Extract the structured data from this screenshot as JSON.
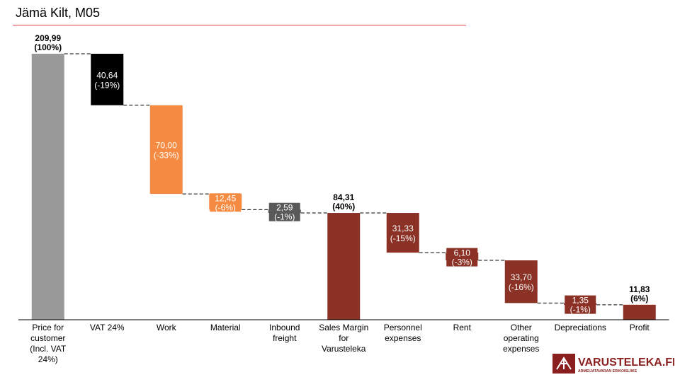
{
  "header": {
    "title": "Jämä Kilt, M05"
  },
  "brand": {
    "logo_text": "VARUSTELEKA.FI",
    "logo_tagline": "ARMEIJATAVARAN ERIKOISLIIKE",
    "color": "#8a1f1f"
  },
  "colors": {
    "total": "#999999",
    "vat": "#000000",
    "work": "#f58a42",
    "material": "#f58a42",
    "inbound": "#595959",
    "margin": "#8b3125",
    "accent_rule": "#e8414f"
  },
  "chart_data": {
    "type": "waterfall",
    "title": "Jämä Kilt, M05",
    "ylim": [
      0,
      209.99
    ],
    "grid": false,
    "legend": "none",
    "steps": [
      {
        "category": "Price for customer (Incl. VAT 24%)",
        "value": "209,99",
        "pct": "(100%)",
        "amount": 209.99,
        "kind": "total",
        "color_key": "total"
      },
      {
        "category": "VAT 24%",
        "value": "40,64",
        "pct": "(-19%)",
        "amount": -40.64,
        "kind": "delta",
        "color_key": "vat"
      },
      {
        "category": "Work",
        "value": "70,00",
        "pct": "(-33%)",
        "amount": -70.0,
        "kind": "delta",
        "color_key": "work"
      },
      {
        "category": "Material",
        "value": "12,45",
        "pct": "(-6%)",
        "amount": -12.45,
        "kind": "delta",
        "color_key": "material"
      },
      {
        "category": "Inbound freight",
        "value": "2,59",
        "pct": "(-1%)",
        "amount": -2.59,
        "kind": "delta",
        "color_key": "inbound"
      },
      {
        "category": "Sales Margin for Varusteleka",
        "value": "84,31",
        "pct": "(40%)",
        "amount": 84.31,
        "kind": "total",
        "color_key": "margin"
      },
      {
        "category": "Personnel expenses",
        "value": "31,33",
        "pct": "(-15%)",
        "amount": -31.33,
        "kind": "delta",
        "color_key": "margin"
      },
      {
        "category": "Rent",
        "value": "6,10",
        "pct": "(-3%)",
        "amount": -6.1,
        "kind": "delta",
        "color_key": "margin"
      },
      {
        "category": "Other operating expenses",
        "value": "33,70",
        "pct": "(-16%)",
        "amount": -33.7,
        "kind": "delta",
        "color_key": "margin"
      },
      {
        "category": "Depreciations",
        "value": "1,35",
        "pct": "(-1%)",
        "amount": -1.35,
        "kind": "delta",
        "color_key": "margin"
      },
      {
        "category": "Profit",
        "value": "11,83",
        "pct": "(6%)",
        "amount": 11.83,
        "kind": "total",
        "color_key": "margin"
      }
    ]
  }
}
